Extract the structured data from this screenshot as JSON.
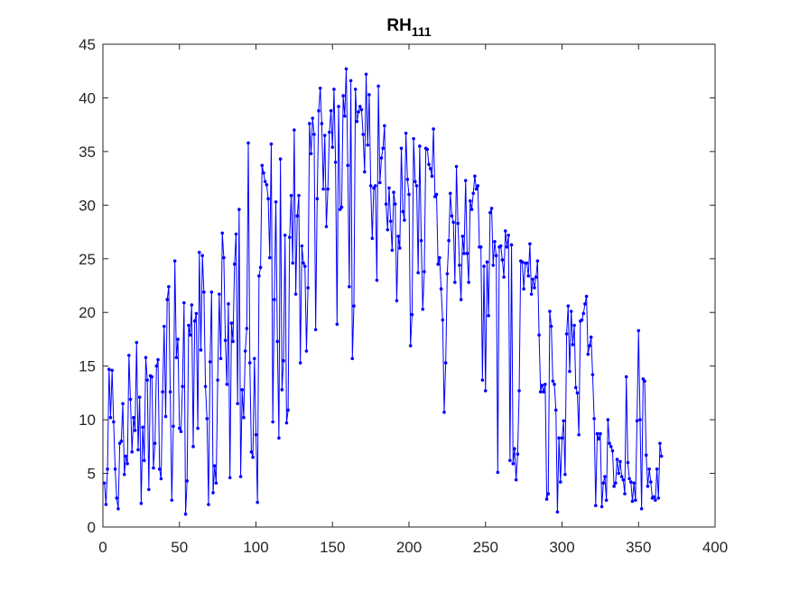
{
  "chart_data": {
    "type": "line",
    "title": "RH",
    "title_subscript": "111",
    "xlabel": "",
    "ylabel": "",
    "xlim": [
      0,
      400
    ],
    "ylim": [
      0,
      45
    ],
    "x_ticks": [
      0,
      50,
      100,
      150,
      200,
      250,
      300,
      350,
      400
    ],
    "y_ticks": [
      0,
      5,
      10,
      15,
      20,
      25,
      30,
      35,
      40,
      45
    ],
    "grid": false,
    "legend": "none",
    "colors": {
      "series": "#0000ff",
      "axes": "#262626",
      "background": "#ffffff"
    },
    "series": [
      {
        "marker": "dot",
        "x": [
          1,
          2,
          3,
          4,
          5,
          6,
          7,
          8,
          9,
          10,
          11,
          12,
          13,
          14,
          15,
          16,
          17,
          18,
          19,
          20,
          21,
          22,
          23,
          24,
          25,
          26,
          27,
          28,
          29,
          30,
          31,
          32,
          33,
          34,
          35,
          36,
          37,
          38,
          39,
          40,
          41,
          42,
          43,
          44,
          45,
          46,
          47,
          48,
          49,
          50,
          51,
          52,
          53,
          54,
          55,
          56,
          57,
          58,
          59,
          60,
          61,
          62,
          63,
          64,
          65,
          66,
          67,
          68,
          69,
          70,
          71,
          72,
          73,
          74,
          75,
          76,
          77,
          78,
          79,
          80,
          81,
          82,
          83,
          84,
          85,
          86,
          87,
          88,
          89,
          90,
          91,
          92,
          93,
          94,
          95,
          96,
          97,
          98,
          99,
          100,
          101,
          102,
          103,
          104,
          105,
          106,
          107,
          108,
          109,
          110,
          111,
          112,
          113,
          114,
          115,
          116,
          117,
          118,
          119,
          120,
          121,
          122,
          123,
          124,
          125,
          126,
          127,
          128,
          129,
          130,
          131,
          132,
          133,
          134,
          135,
          136,
          137,
          138,
          139,
          140,
          141,
          142,
          143,
          144,
          145,
          146,
          147,
          148,
          149,
          150,
          151,
          152,
          153,
          154,
          155,
          156,
          157,
          158,
          159,
          160,
          161,
          162,
          163,
          164,
          165,
          166,
          167,
          168,
          169,
          170,
          171,
          172,
          173,
          174,
          175,
          176,
          177,
          178,
          179,
          180,
          181,
          182,
          183,
          184,
          185,
          186,
          187,
          188,
          189,
          190,
          191,
          192,
          193,
          194,
          195,
          196,
          197,
          198,
          199,
          200,
          201,
          202,
          203,
          204,
          205,
          206,
          207,
          208,
          209,
          210,
          211,
          212,
          213,
          214,
          215,
          216,
          217,
          218,
          219,
          220,
          221,
          222,
          223,
          224,
          225,
          226,
          227,
          228,
          229,
          230,
          231,
          232,
          233,
          234,
          235,
          236,
          237,
          238,
          239,
          240,
          241,
          242,
          243,
          244,
          245,
          246,
          247,
          248,
          249,
          250,
          251,
          252,
          253,
          254,
          255,
          256,
          257,
          258,
          259,
          260,
          261,
          262,
          263,
          264,
          265,
          266,
          267,
          268,
          269,
          270,
          271,
          272,
          273,
          274,
          275,
          276,
          277,
          278,
          279,
          280,
          281,
          282,
          283,
          284,
          285,
          286,
          287,
          288,
          289,
          290,
          291,
          292,
          293,
          294,
          295,
          296,
          297,
          298,
          299,
          300,
          301,
          302,
          303,
          304,
          305,
          306,
          307,
          308,
          309,
          310,
          311,
          312,
          313,
          314,
          315,
          316,
          317,
          318,
          319,
          320,
          321,
          322,
          323,
          324,
          325,
          326,
          327,
          328,
          329,
          330,
          331,
          332,
          333,
          334,
          335,
          336,
          337,
          338,
          339,
          340,
          341,
          342,
          343,
          344,
          345,
          346,
          347,
          348,
          349,
          350,
          351,
          352,
          353,
          354,
          355,
          356,
          357,
          358,
          359,
          360,
          361,
          362,
          363,
          364,
          365
        ],
        "y": [
          4.1,
          2.1,
          5.4,
          14.7,
          10.2,
          14.6,
          9.8,
          5.4,
          2.7,
          1.7,
          7.8,
          8.0,
          11.5,
          4.9,
          6.6,
          5.9,
          16.0,
          11.9,
          7.0,
          10.2,
          9.0,
          17.2,
          7.2,
          12.1,
          2.2,
          9.3,
          6.2,
          15.8,
          13.7,
          3.5,
          14.1,
          14.0,
          5.5,
          7.8,
          15.0,
          15.6,
          5.4,
          4.5,
          12.6,
          18.7,
          10.3,
          21.2,
          22.4,
          12.6,
          2.5,
          9.4,
          24.8,
          15.8,
          17.5,
          9.2,
          8.9,
          13.1,
          20.9,
          1.2,
          4.3,
          18.8,
          17.9,
          20.7,
          7.5,
          19.2,
          19.9,
          9.2,
          25.6,
          16.5,
          25.3,
          21.9,
          13.1,
          10.1,
          2.1,
          15.4,
          21.9,
          3.2,
          5.7,
          4.1,
          13.7,
          21.7,
          15.7,
          27.4,
          25.1,
          17.4,
          13.3,
          20.8,
          4.6,
          19.0,
          17.3,
          24.5,
          27.3,
          11.5,
          29.6,
          4.7,
          12.8,
          10.2,
          16.4,
          18.5,
          35.8,
          15.3,
          7.0,
          6.5,
          15.7,
          8.6,
          2.3,
          23.4,
          24.2,
          33.7,
          33.0,
          32.2,
          31.9,
          30.6,
          25.1,
          35.7,
          9.8,
          21.2,
          30.3,
          17.3,
          8.3,
          34.3,
          12.8,
          15.5,
          27.2,
          9.7,
          10.9,
          27.0,
          30.9,
          24.6,
          37.0,
          21.7,
          29.0,
          30.9,
          15.3,
          26.2,
          24.6,
          24.3,
          16.4,
          22.3,
          37.6,
          34.8,
          38.1,
          36.6,
          18.4,
          30.6,
          38.8,
          40.9,
          37.6,
          31.5,
          36.5,
          28.0,
          31.5,
          36.8,
          38.8,
          35.4,
          40.8,
          34.0,
          18.9,
          39.2,
          29.6,
          29.8,
          40.2,
          38.3,
          42.7,
          33.7,
          22.4,
          41.6,
          15.7,
          20.6,
          40.8,
          37.8,
          38.7,
          39.2,
          38.9,
          36.6,
          33.1,
          42.2,
          35.6,
          40.3,
          31.8,
          26.9,
          31.6,
          31.8,
          23.0,
          41.1,
          32.1,
          34.4,
          35.3,
          37.4,
          30.1,
          27.7,
          31.6,
          28.5,
          25.8,
          31.2,
          30.1,
          21.1,
          27.1,
          26.0,
          35.3,
          29.4,
          28.6,
          36.7,
          32.4,
          31.0,
          16.9,
          19.8,
          36.2,
          32.2,
          31.8,
          23.7,
          35.5,
          26.7,
          20.3,
          23.8,
          35.3,
          35.2,
          33.8,
          33.4,
          32.7,
          37.1,
          30.8,
          31.0,
          24.5,
          25.1,
          22.2,
          19.3,
          10.7,
          15.3,
          23.6,
          26.7,
          31.1,
          29.0,
          28.4,
          22.8,
          33.6,
          28.3,
          24.4,
          21.2,
          27.1,
          25.5,
          32.3,
          25.5,
          22.8,
          30.4,
          29.6,
          31.1,
          32.7,
          31.5,
          31.8,
          26.1,
          26.1,
          13.7,
          24.3,
          12.7,
          24.7,
          19.7,
          29.3,
          29.7,
          24.4,
          26.6,
          25.3,
          5.1,
          26.1,
          26.2,
          24.9,
          23.3,
          27.6,
          26.1,
          27.2,
          6.2,
          26.3,
          5.9,
          7.3,
          4.4,
          6.8,
          12.7,
          24.8,
          24.7,
          22.2,
          24.6,
          24.6,
          23.4,
          26.4,
          21.7,
          23.1,
          22.3,
          23.3,
          24.8,
          17.9,
          12.6,
          13.2,
          12.6,
          13.3,
          2.6,
          3.1,
          20.1,
          18.7,
          13.6,
          13.3,
          10.9,
          1.4,
          8.3,
          4.2,
          8.3,
          9.9,
          4.9,
          18.0,
          20.6,
          14.5,
          20.1,
          17.0,
          18.8,
          13.0,
          12.5,
          8.6,
          19.2,
          19.3,
          19.9,
          20.8,
          21.5,
          16.1,
          16.9,
          17.7,
          14.2,
          10.1,
          2.0,
          8.7,
          8.2,
          8.7,
          1.9,
          4.1,
          4.7,
          2.5,
          10.0,
          7.8,
          7.5,
          7.1,
          3.8,
          4.1,
          6.3,
          5.0,
          6.1,
          4.7,
          4.4,
          3.1,
          14.0,
          6.0,
          4.5,
          4.2,
          2.4,
          4.1,
          2.5,
          9.9,
          18.3,
          10.0,
          1.7,
          13.8,
          13.6,
          6.7,
          3.8,
          5.4,
          4.2,
          2.7,
          2.8,
          2.5,
          5.4,
          2.7,
          7.8,
          6.6
        ]
      }
    ]
  }
}
